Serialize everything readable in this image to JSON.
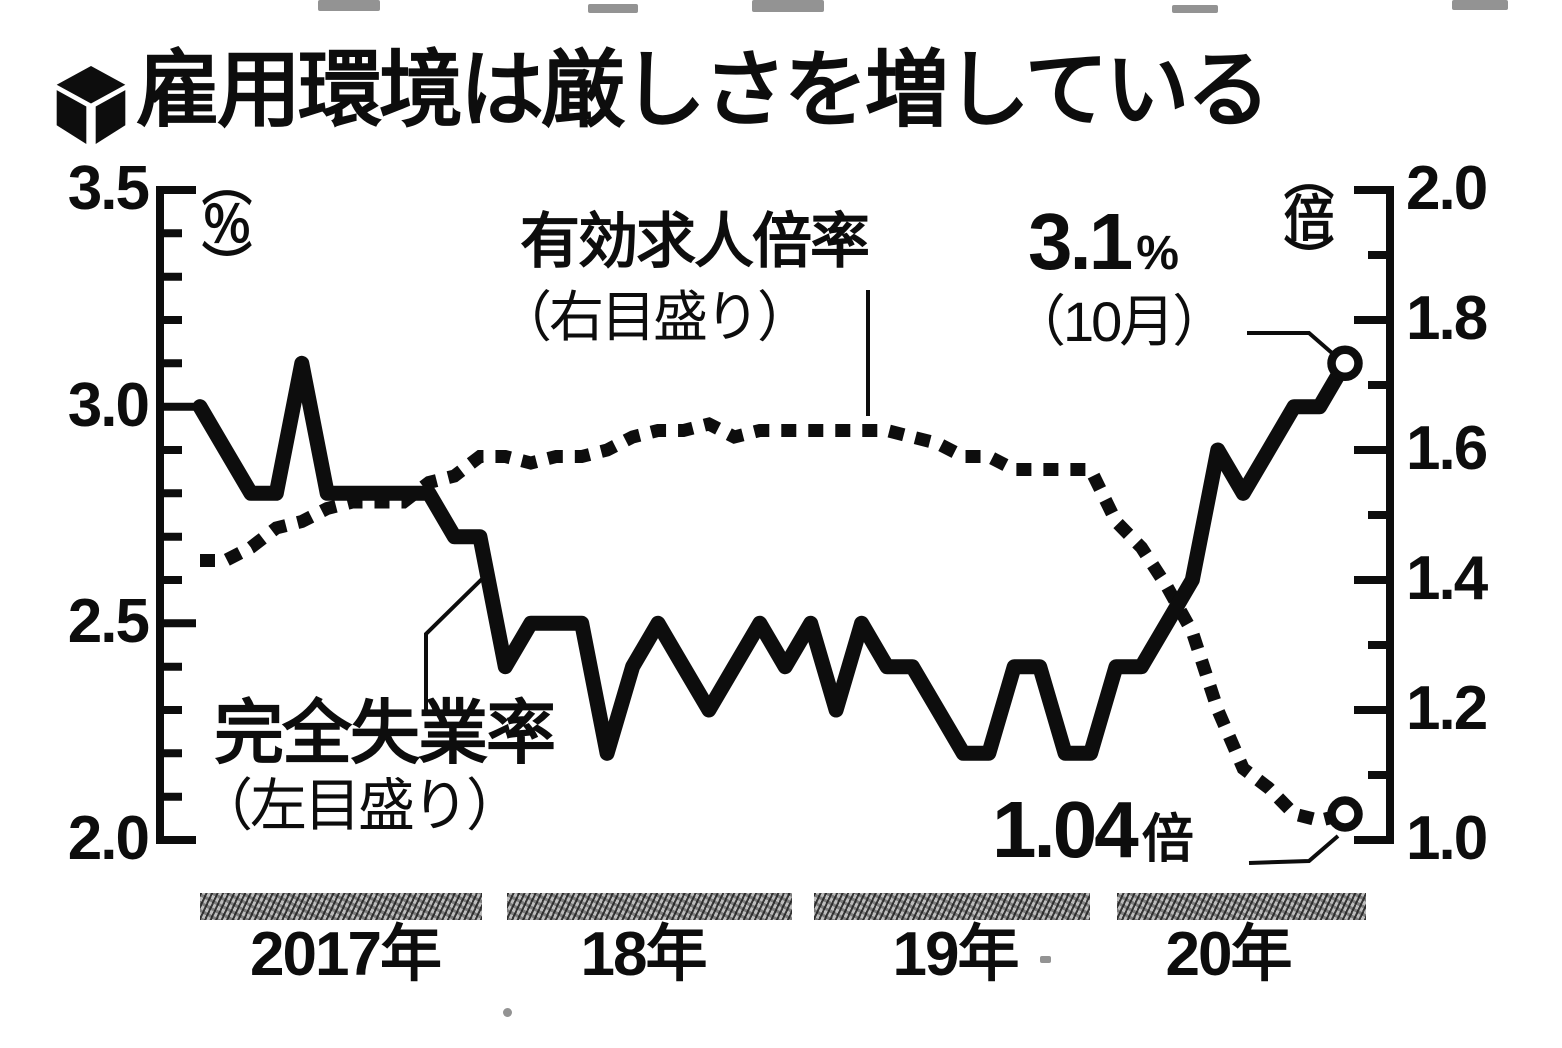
{
  "title": {
    "text": "雇用環境は厳しさを増している"
  },
  "colors": {
    "ink": "#0d0d0d",
    "background": "#ffffff",
    "year_bar_gray": "#9b9b9b"
  },
  "chart_data": {
    "type": "line",
    "title": "雇用環境は厳しさを増している",
    "grid": false,
    "legend_position": "inline-annotations",
    "x": {
      "unit": "month",
      "from": "2017-01",
      "to": "2020-10",
      "n_points": 46,
      "year_labels": [
        "2017年",
        "18年",
        "19年",
        "20年"
      ]
    },
    "axes": {
      "left": {
        "unit": "（％）",
        "range": [
          2.0,
          3.5
        ],
        "tick_labels": [
          "3.5",
          "3.0",
          "2.5",
          "2.0"
        ],
        "minor_tick_step": 0.1
      },
      "right": {
        "unit": "（倍）",
        "range": [
          1.0,
          2.0
        ],
        "tick_labels": [
          "2.0",
          "1.8",
          "1.6",
          "1.4",
          "1.2",
          "1.0"
        ],
        "minor_tick_step": 0.1
      }
    },
    "series": [
      {
        "name": "完全失業率",
        "label_line1": "完全失業率",
        "label_line2": "（左目盛り）",
        "axis": "left",
        "line_style": "solid",
        "values": [
          3.0,
          2.9,
          2.8,
          2.8,
          3.1,
          2.8,
          2.8,
          2.8,
          2.8,
          2.8,
          2.7,
          2.7,
          2.4,
          2.5,
          2.5,
          2.5,
          2.2,
          2.4,
          2.5,
          2.4,
          2.3,
          2.4,
          2.5,
          2.4,
          2.5,
          2.3,
          2.5,
          2.4,
          2.4,
          2.3,
          2.2,
          2.2,
          2.4,
          2.4,
          2.2,
          2.2,
          2.4,
          2.4,
          2.5,
          2.6,
          2.9,
          2.8,
          2.9,
          3.0,
          3.0,
          3.1
        ]
      },
      {
        "name": "有効求人倍率",
        "label_line1": "有効求人倍率",
        "label_line2": "（右目盛り）",
        "axis": "right",
        "line_style": "dashed",
        "values": [
          1.43,
          1.43,
          1.45,
          1.48,
          1.49,
          1.51,
          1.52,
          1.52,
          1.52,
          1.55,
          1.56,
          1.59,
          1.59,
          1.58,
          1.59,
          1.59,
          1.6,
          1.62,
          1.63,
          1.63,
          1.64,
          1.62,
          1.63,
          1.63,
          1.63,
          1.63,
          1.63,
          1.63,
          1.62,
          1.61,
          1.59,
          1.59,
          1.57,
          1.57,
          1.57,
          1.57,
          1.49,
          1.45,
          1.39,
          1.32,
          1.2,
          1.11,
          1.08,
          1.04,
          1.03,
          1.04
        ]
      }
    ],
    "callouts": {
      "unemployment_latest": {
        "value": "3.1",
        "unit": "%",
        "note": "（10月）"
      },
      "jobratio_latest": {
        "value": "1.04",
        "unit": "倍"
      }
    }
  }
}
